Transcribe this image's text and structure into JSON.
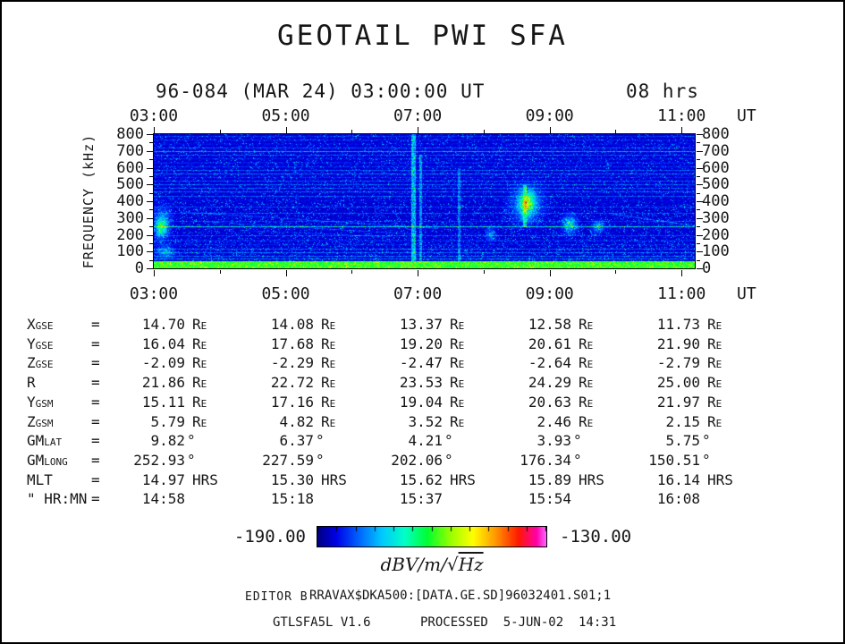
{
  "title": "GEOTAIL PWI SFA",
  "subtitle": {
    "line": "96-084 (MAR 24) 03:00:00 UT",
    "duration": "08 hrs"
  },
  "time_axis": {
    "unit": "UT",
    "labels": [
      "03:00",
      "05:00",
      "07:00",
      "09:00",
      "11:00"
    ],
    "hours": [
      3,
      5,
      7,
      9,
      11
    ],
    "minor_hours": [
      4,
      6,
      8,
      10
    ]
  },
  "ephemeris": {
    "equals_sign": "=",
    "rows": [
      {
        "label": "X",
        "label_sub": "GSE",
        "values": [
          "14.70",
          "14.08",
          "13.37",
          "12.58",
          "11.73"
        ],
        "unit": "R",
        "unit_sub": "E",
        "unit_gap": true
      },
      {
        "label": "Y",
        "label_sub": "GSE",
        "values": [
          "16.04",
          "17.68",
          "19.20",
          "20.61",
          "21.90"
        ],
        "unit": "R",
        "unit_sub": "E",
        "unit_gap": true
      },
      {
        "label": "Z",
        "label_sub": "GSE",
        "values": [
          "-2.09",
          "-2.29",
          "-2.47",
          "-2.64",
          "-2.79"
        ],
        "unit": "R",
        "unit_sub": "E",
        "unit_gap": true
      },
      {
        "label": "R",
        "label_sub": "",
        "values": [
          "21.86",
          "22.72",
          "23.53",
          "24.29",
          "25.00"
        ],
        "unit": "R",
        "unit_sub": "E",
        "unit_gap": true
      },
      {
        "label": "Y",
        "label_sub": "GSM",
        "values": [
          "15.11",
          "17.16",
          "19.04",
          "20.63",
          "21.97"
        ],
        "unit": "R",
        "unit_sub": "E",
        "unit_gap": true
      },
      {
        "label": "Z",
        "label_sub": "GSM",
        "values": [
          "5.79",
          "4.82",
          "3.52",
          "2.46",
          "2.15"
        ],
        "unit": "R",
        "unit_sub": "E",
        "unit_gap": true
      },
      {
        "label": "GM",
        "label_sub": "LAT",
        "values": [
          "9.82",
          "6.37",
          "4.21",
          "3.93",
          "5.75"
        ],
        "unit": "°",
        "unit_sub": "",
        "unit_gap": false
      },
      {
        "label": "GM",
        "label_sub": "LONG",
        "values": [
          "252.93",
          "227.59",
          "202.06",
          "176.34",
          "150.51"
        ],
        "unit": "°",
        "unit_sub": "",
        "unit_gap": false
      },
      {
        "label": "MLT",
        "label_sub": "",
        "values": [
          "14.97",
          "15.30",
          "15.62",
          "15.89",
          "16.14"
        ],
        "unit": "HRS",
        "unit_sub": "",
        "unit_gap": true
      },
      {
        "label": "\" HR:MN",
        "label_sub": "",
        "values": [
          "14:58",
          "15:18",
          "15:37",
          "15:54",
          "16:08"
        ],
        "unit": "",
        "unit_sub": "",
        "unit_gap": false
      }
    ]
  },
  "colorbar": {
    "min_label": "-190.00",
    "max_label": "-130.00",
    "unit_prefix": "dBV/m/√",
    "unit_radicand": "Hz",
    "tick_count": 13
  },
  "footer": {
    "editor": "EDITOR B",
    "file": "RRAVAX$DKA500:[DATA.GE.SD]96032401.S01;1",
    "program": "GTLSFA5L V1.6",
    "processed": "PROCESSED  5-JUN-02  14:31"
  },
  "chart_data": {
    "type": "heatmap",
    "title": "GEOTAIL PWI SFA dynamic spectrogram, 96-084 (MAR 24) 03:00:00 UT, 08 hrs",
    "xlabel": "UT",
    "ylabel": "FREQUENCY (kHz)",
    "x_range_hours": [
      3.0,
      11.2
    ],
    "x_tick_labels": [
      "03:00",
      "05:00",
      "07:00",
      "09:00",
      "11:00"
    ],
    "y_range_khz": [
      0,
      800
    ],
    "y_ticks_khz": [
      800,
      700,
      600,
      500,
      400,
      300,
      200,
      100,
      0
    ],
    "z_label": "dBV/m/√Hz",
    "z_range_db": [
      -190,
      -130
    ],
    "background_db": -187,
    "green_band_top_khz": 46,
    "colormap_stops": [
      {
        "pos": 0.0,
        "color": "#000082"
      },
      {
        "pos": 0.08,
        "color": "#0000e6"
      },
      {
        "pos": 0.18,
        "color": "#0064ff"
      },
      {
        "pos": 0.28,
        "color": "#00c8ff"
      },
      {
        "pos": 0.38,
        "color": "#00ffc8"
      },
      {
        "pos": 0.48,
        "color": "#00ff32"
      },
      {
        "pos": 0.58,
        "color": "#96ff00"
      },
      {
        "pos": 0.68,
        "color": "#ffff00"
      },
      {
        "pos": 0.78,
        "color": "#ff9600"
      },
      {
        "pos": 0.88,
        "color": "#ff1900"
      },
      {
        "pos": 0.96,
        "color": "#ff00aa"
      },
      {
        "pos": 1.0,
        "color": "#ff64ff"
      }
    ],
    "interference_lines": [
      [
        57,
        14
      ],
      [
        75,
        8
      ],
      [
        95,
        10
      ],
      [
        118,
        8
      ],
      [
        142,
        7
      ],
      [
        168,
        12
      ],
      [
        198,
        6
      ],
      [
        250,
        20
      ],
      [
        282,
        5
      ],
      [
        330,
        6
      ],
      [
        368,
        5
      ],
      [
        408,
        6
      ],
      [
        432,
        7
      ],
      [
        458,
        8
      ],
      [
        480,
        7
      ],
      [
        502,
        8
      ],
      [
        524,
        9
      ],
      [
        546,
        8
      ],
      [
        566,
        9
      ],
      [
        588,
        10
      ],
      [
        610,
        9
      ],
      [
        632,
        11
      ],
      [
        654,
        8
      ],
      [
        676,
        9
      ],
      [
        698,
        13
      ],
      [
        722,
        14
      ],
      [
        744,
        8
      ],
      [
        766,
        9
      ],
      [
        788,
        7
      ]
    ],
    "features": [
      {
        "type": "blob",
        "t": [
          2.95,
          3.3
        ],
        "f": [
          140,
          400
        ],
        "amp": 14
      },
      {
        "type": "blob",
        "t": [
          3.0,
          3.2
        ],
        "f": [
          180,
          310
        ],
        "amp": 18
      },
      {
        "type": "blob",
        "t": [
          2.98,
          3.35
        ],
        "f": [
          50,
          150
        ],
        "amp": 12
      },
      {
        "type": "drift",
        "t": [
          3.4,
          7.3
        ],
        "f_start": 340,
        "f_end": 240,
        "amp": 7
      },
      {
        "type": "drift",
        "t": [
          3.8,
          7.0
        ],
        "f_start": 280,
        "f_end": 205,
        "amp": 6
      },
      {
        "type": "drift",
        "t": [
          4.3,
          6.6
        ],
        "f_start": 230,
        "f_end": 190,
        "amp": 5
      },
      {
        "type": "vline",
        "t0": 6.93,
        "w": 0.035,
        "f": [
          46,
          800
        ],
        "amp": 13
      },
      {
        "type": "vline",
        "t0": 7.04,
        "w": 0.025,
        "f": [
          46,
          680
        ],
        "amp": 10
      },
      {
        "type": "vline",
        "t0": 7.62,
        "w": 0.025,
        "f": [
          46,
          600
        ],
        "amp": 8
      },
      {
        "type": "blob",
        "t": [
          8.35,
          8.95
        ],
        "f": [
          240,
          530
        ],
        "amp": 16
      },
      {
        "type": "blob",
        "t": [
          8.5,
          8.8
        ],
        "f": [
          290,
          490
        ],
        "amp": 20
      },
      {
        "type": "vline",
        "t0": 8.62,
        "w": 0.03,
        "f": [
          250,
          500
        ],
        "amp": 12
      },
      {
        "type": "blob",
        "t": [
          8.0,
          8.2
        ],
        "f": [
          150,
          260
        ],
        "amp": 10
      },
      {
        "type": "blob",
        "t": [
          9.15,
          9.45
        ],
        "f": [
          190,
          340
        ],
        "amp": 18
      },
      {
        "type": "blob",
        "t": [
          9.6,
          9.85
        ],
        "f": [
          200,
          300
        ],
        "amp": 14
      },
      {
        "type": "drift",
        "t": [
          9.9,
          11.2
        ],
        "f_start": 330,
        "f_end": 255,
        "amp": 10
      }
    ]
  }
}
